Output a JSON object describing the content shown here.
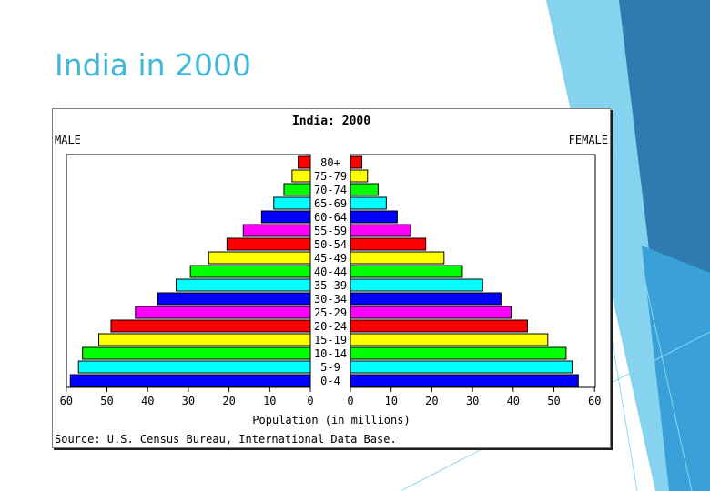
{
  "slide": {
    "title": "India in 2000"
  },
  "chart_data": {
    "type": "bar",
    "title": "India: 2000",
    "left_label": "MALE",
    "right_label": "FEMALE",
    "xlabel": "Population (in millions)",
    "source": "Source: U.S. Census Bureau, International Data Base.",
    "xlim": [
      0,
      60
    ],
    "ticks": [
      "60",
      "50",
      "40",
      "30",
      "20",
      "10",
      "0",
      "0",
      "10",
      "20",
      "30",
      "40",
      "50",
      "60"
    ],
    "categories": [
      "80+",
      "75-79",
      "70-74",
      "65-69",
      "60-64",
      "55-59",
      "50-54",
      "45-49",
      "40-44",
      "35-39",
      "30-34",
      "25-29",
      "20-24",
      "15-19",
      "10-14",
      "5-9",
      "0-4"
    ],
    "colors": [
      "#ff0000",
      "#ffff00",
      "#00ff00",
      "#00ffff",
      "#0000ff",
      "#ff00ff",
      "#ff0000",
      "#ffff00",
      "#00ff00",
      "#00ffff",
      "#0000ff",
      "#ff00ff",
      "#ff0000",
      "#ffff00",
      "#00ff00",
      "#00ffff",
      "#0000ff"
    ],
    "series": [
      {
        "name": "MALE",
        "values": [
          3.0,
          4.5,
          6.5,
          9.0,
          12.0,
          16.5,
          20.5,
          25.0,
          29.5,
          33.0,
          37.5,
          43.0,
          49.0,
          52.0,
          56.0,
          57.0,
          59.0
        ]
      },
      {
        "name": "FEMALE",
        "values": [
          2.8,
          4.2,
          6.8,
          8.8,
          11.5,
          14.8,
          18.5,
          23.0,
          27.5,
          32.5,
          37.0,
          39.5,
          43.5,
          48.5,
          53.0,
          54.5,
          56.0
        ]
      }
    ]
  }
}
